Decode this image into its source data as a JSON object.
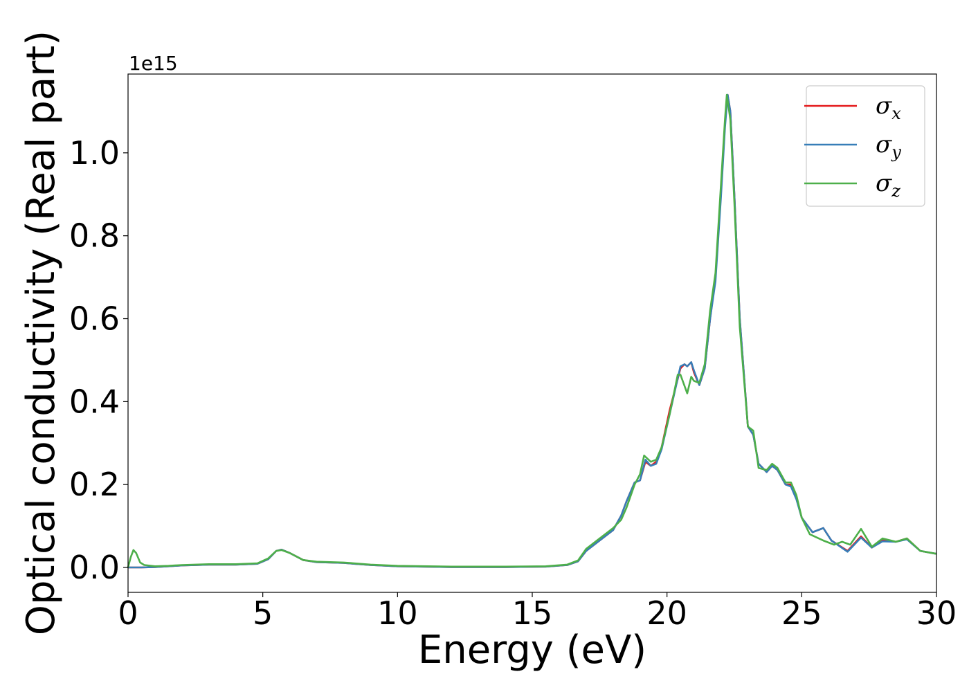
{
  "chart_data": {
    "type": "line",
    "xlabel": "Energy (eV)",
    "ylabel": "Optical conductivity (Real part)",
    "y_offset_text": "1e15",
    "xlim": [
      0,
      30
    ],
    "ylim": [
      -0.06,
      1.19
    ],
    "x_ticks": [
      0,
      5,
      10,
      15,
      20,
      25,
      30
    ],
    "x_tick_labels": [
      "0",
      "5",
      "10",
      "15",
      "20",
      "25",
      "30"
    ],
    "y_ticks": [
      0.0,
      0.2,
      0.4,
      0.6,
      0.8,
      1.0
    ],
    "y_tick_labels": [
      "0.0",
      "0.2",
      "0.4",
      "0.6",
      "0.8",
      "1.0"
    ],
    "grid": false,
    "legend_position": "top-right",
    "series": [
      {
        "name": "σx",
        "legend_base": "σ",
        "legend_sub": "x",
        "color": "#e41a1c",
        "points": [
          [
            0,
            0
          ],
          [
            0.5,
            0
          ],
          [
            1.0,
            0.001
          ],
          [
            1.5,
            0.003
          ],
          [
            2.0,
            0.005
          ],
          [
            3.0,
            0.007
          ],
          [
            4.0,
            0.007
          ],
          [
            4.8,
            0.009
          ],
          [
            5.2,
            0.02
          ],
          [
            5.5,
            0.04
          ],
          [
            5.7,
            0.043
          ],
          [
            6.0,
            0.035
          ],
          [
            6.5,
            0.018
          ],
          [
            7.0,
            0.013
          ],
          [
            8.0,
            0.011
          ],
          [
            9.0,
            0.006
          ],
          [
            10.0,
            0.003
          ],
          [
            12.0,
            0.001
          ],
          [
            14.0,
            0.001
          ],
          [
            15.5,
            0.002
          ],
          [
            16.3,
            0.006
          ],
          [
            16.7,
            0.015
          ],
          [
            17.0,
            0.04
          ],
          [
            17.5,
            0.065
          ],
          [
            18.0,
            0.09
          ],
          [
            18.3,
            0.125
          ],
          [
            18.5,
            0.16
          ],
          [
            18.8,
            0.205
          ],
          [
            19.0,
            0.21
          ],
          [
            19.2,
            0.255
          ],
          [
            19.4,
            0.245
          ],
          [
            19.6,
            0.255
          ],
          [
            19.8,
            0.29
          ],
          [
            20.1,
            0.38
          ],
          [
            20.5,
            0.48
          ],
          [
            20.65,
            0.49
          ],
          [
            20.75,
            0.485
          ],
          [
            20.9,
            0.495
          ],
          [
            21.0,
            0.47
          ],
          [
            21.2,
            0.44
          ],
          [
            21.4,
            0.48
          ],
          [
            21.6,
            0.6
          ],
          [
            21.8,
            0.7
          ],
          [
            22.0,
            0.9
          ],
          [
            22.15,
            1.07
          ],
          [
            22.25,
            1.14
          ],
          [
            22.35,
            1.1
          ],
          [
            22.5,
            0.9
          ],
          [
            22.7,
            0.6
          ],
          [
            23.0,
            0.34
          ],
          [
            23.2,
            0.32
          ],
          [
            23.4,
            0.25
          ],
          [
            23.7,
            0.23
          ],
          [
            23.9,
            0.245
          ],
          [
            24.1,
            0.235
          ],
          [
            24.4,
            0.2
          ],
          [
            24.6,
            0.2
          ],
          [
            24.8,
            0.17
          ],
          [
            25.0,
            0.12
          ],
          [
            25.4,
            0.085
          ],
          [
            25.8,
            0.095
          ],
          [
            26.1,
            0.065
          ],
          [
            26.7,
            0.04
          ],
          [
            27.2,
            0.075
          ],
          [
            27.6,
            0.048
          ],
          [
            28.0,
            0.065
          ],
          [
            28.5,
            0.062
          ],
          [
            28.9,
            0.07
          ],
          [
            29.4,
            0.04
          ],
          [
            30.0,
            0.033
          ]
        ]
      },
      {
        "name": "σy",
        "legend_base": "σ",
        "legend_sub": "y",
        "color": "#377eb8",
        "points": [
          [
            0,
            0
          ],
          [
            0.5,
            0
          ],
          [
            1.0,
            0.001
          ],
          [
            1.5,
            0.003
          ],
          [
            2.0,
            0.005
          ],
          [
            3.0,
            0.007
          ],
          [
            4.0,
            0.007
          ],
          [
            4.8,
            0.009
          ],
          [
            5.2,
            0.02
          ],
          [
            5.5,
            0.04
          ],
          [
            5.7,
            0.043
          ],
          [
            6.0,
            0.035
          ],
          [
            6.5,
            0.018
          ],
          [
            7.0,
            0.013
          ],
          [
            8.0,
            0.011
          ],
          [
            9.0,
            0.006
          ],
          [
            10.0,
            0.003
          ],
          [
            12.0,
            0.001
          ],
          [
            14.0,
            0.001
          ],
          [
            15.5,
            0.002
          ],
          [
            16.3,
            0.006
          ],
          [
            16.7,
            0.015
          ],
          [
            17.0,
            0.04
          ],
          [
            17.5,
            0.065
          ],
          [
            18.0,
            0.09
          ],
          [
            18.3,
            0.125
          ],
          [
            18.5,
            0.16
          ],
          [
            18.8,
            0.205
          ],
          [
            19.0,
            0.21
          ],
          [
            19.2,
            0.26
          ],
          [
            19.4,
            0.245
          ],
          [
            19.6,
            0.25
          ],
          [
            19.8,
            0.285
          ],
          [
            20.1,
            0.37
          ],
          [
            20.5,
            0.485
          ],
          [
            20.65,
            0.49
          ],
          [
            20.75,
            0.485
          ],
          [
            20.9,
            0.495
          ],
          [
            21.0,
            0.475
          ],
          [
            21.2,
            0.44
          ],
          [
            21.4,
            0.48
          ],
          [
            21.6,
            0.6
          ],
          [
            21.8,
            0.69
          ],
          [
            22.0,
            0.89
          ],
          [
            22.15,
            1.06
          ],
          [
            22.25,
            1.14
          ],
          [
            22.35,
            1.1
          ],
          [
            22.5,
            0.9
          ],
          [
            22.7,
            0.6
          ],
          [
            23.0,
            0.34
          ],
          [
            23.2,
            0.32
          ],
          [
            23.4,
            0.25
          ],
          [
            23.7,
            0.23
          ],
          [
            23.9,
            0.245
          ],
          [
            24.1,
            0.235
          ],
          [
            24.4,
            0.2
          ],
          [
            24.6,
            0.195
          ],
          [
            24.8,
            0.165
          ],
          [
            25.0,
            0.12
          ],
          [
            25.4,
            0.085
          ],
          [
            25.8,
            0.095
          ],
          [
            26.1,
            0.065
          ],
          [
            26.7,
            0.038
          ],
          [
            27.2,
            0.072
          ],
          [
            27.6,
            0.048
          ],
          [
            28.0,
            0.063
          ],
          [
            28.5,
            0.062
          ],
          [
            28.9,
            0.068
          ],
          [
            29.4,
            0.04
          ],
          [
            30.0,
            0.033
          ]
        ]
      },
      {
        "name": "σz",
        "legend_base": "σ",
        "legend_sub": "z",
        "color": "#4daf4a",
        "points": [
          [
            0,
            0
          ],
          [
            0.1,
            0.025
          ],
          [
            0.2,
            0.042
          ],
          [
            0.3,
            0.035
          ],
          [
            0.45,
            0.012
          ],
          [
            0.6,
            0.006
          ],
          [
            1.0,
            0.003
          ],
          [
            1.5,
            0.004
          ],
          [
            2.0,
            0.006
          ],
          [
            3.0,
            0.008
          ],
          [
            4.0,
            0.008
          ],
          [
            4.8,
            0.01
          ],
          [
            5.2,
            0.022
          ],
          [
            5.5,
            0.04
          ],
          [
            5.7,
            0.042
          ],
          [
            6.0,
            0.035
          ],
          [
            6.5,
            0.018
          ],
          [
            7.0,
            0.014
          ],
          [
            8.0,
            0.012
          ],
          [
            9.0,
            0.007
          ],
          [
            10.0,
            0.004
          ],
          [
            12.0,
            0.002
          ],
          [
            14.0,
            0.002
          ],
          [
            15.5,
            0.003
          ],
          [
            16.3,
            0.007
          ],
          [
            16.7,
            0.017
          ],
          [
            17.0,
            0.045
          ],
          [
            17.5,
            0.07
          ],
          [
            18.0,
            0.095
          ],
          [
            18.3,
            0.115
          ],
          [
            18.5,
            0.145
          ],
          [
            18.8,
            0.2
          ],
          [
            19.0,
            0.225
          ],
          [
            19.15,
            0.27
          ],
          [
            19.4,
            0.255
          ],
          [
            19.6,
            0.26
          ],
          [
            19.8,
            0.29
          ],
          [
            20.1,
            0.37
          ],
          [
            20.4,
            0.465
          ],
          [
            20.5,
            0.465
          ],
          [
            20.75,
            0.42
          ],
          [
            20.9,
            0.46
          ],
          [
            21.0,
            0.45
          ],
          [
            21.2,
            0.445
          ],
          [
            21.4,
            0.49
          ],
          [
            21.6,
            0.62
          ],
          [
            21.8,
            0.71
          ],
          [
            22.0,
            0.92
          ],
          [
            22.15,
            1.08
          ],
          [
            22.22,
            1.14
          ],
          [
            22.35,
            1.08
          ],
          [
            22.5,
            0.88
          ],
          [
            22.7,
            0.58
          ],
          [
            23.0,
            0.34
          ],
          [
            23.2,
            0.33
          ],
          [
            23.4,
            0.24
          ],
          [
            23.7,
            0.235
          ],
          [
            23.9,
            0.25
          ],
          [
            24.1,
            0.24
          ],
          [
            24.4,
            0.205
          ],
          [
            24.6,
            0.205
          ],
          [
            24.8,
            0.175
          ],
          [
            25.0,
            0.12
          ],
          [
            25.3,
            0.08
          ],
          [
            25.8,
            0.065
          ],
          [
            26.2,
            0.055
          ],
          [
            26.5,
            0.062
          ],
          [
            26.8,
            0.055
          ],
          [
            27.2,
            0.093
          ],
          [
            27.6,
            0.05
          ],
          [
            28.0,
            0.07
          ],
          [
            28.5,
            0.062
          ],
          [
            28.9,
            0.07
          ],
          [
            29.4,
            0.04
          ],
          [
            30.0,
            0.033
          ]
        ]
      }
    ]
  }
}
